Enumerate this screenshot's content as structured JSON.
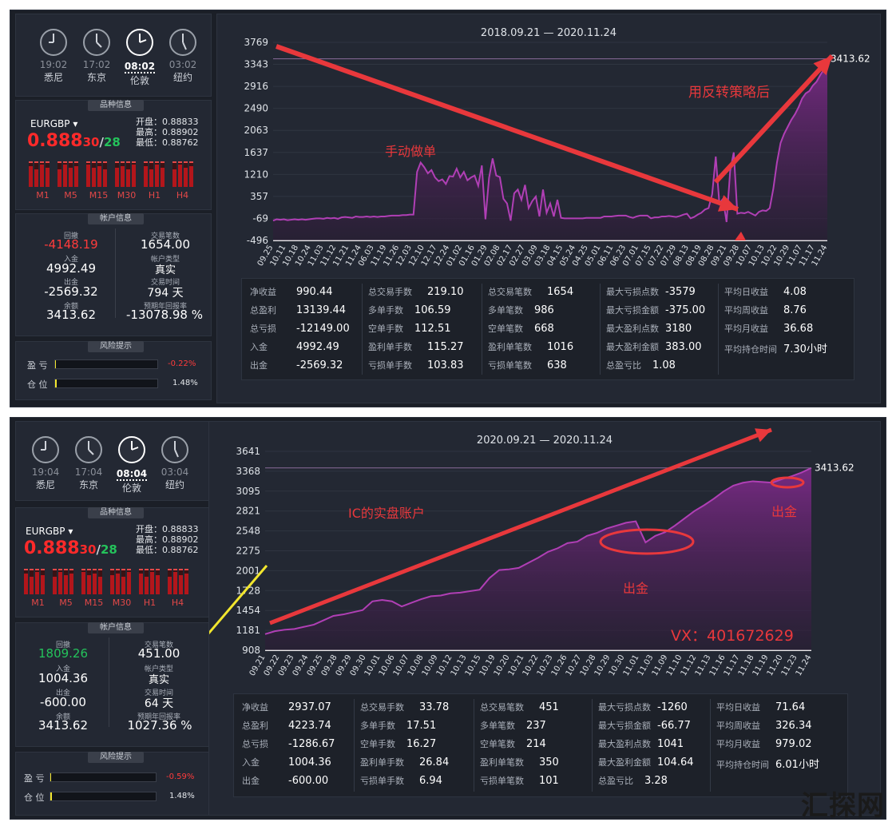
{
  "screens": [
    {
      "clocks": [
        {
          "time": "19:02",
          "city": "悉尼"
        },
        {
          "time": "17:02",
          "city": "东京"
        },
        {
          "time": "08:02",
          "city": "伦敦"
        },
        {
          "time": "03:02",
          "city": "纽约"
        }
      ],
      "symbol_panel": {
        "title": "品种信息",
        "symbol": "EURGBP",
        "price": "0.888",
        "bid": "30",
        "slash": "/",
        "ask": "28",
        "open": "开盘：0.88833",
        "high": "最高：0.88902",
        "low": "最低：0.88762"
      },
      "timeframes": [
        "M1",
        "M5",
        "M15",
        "M30",
        "H1",
        "H4"
      ],
      "account": {
        "title": "帐户信息",
        "drawdown_label": "回撤",
        "drawdown": "-4148.19",
        "trades_label": "交易笔数",
        "trades": "1654.00",
        "deposit_label": "入金",
        "deposit": "4992.49",
        "type_label": "帐户类型",
        "type": "真实",
        "withdraw_label": "出金",
        "withdraw": "-2569.32",
        "time_label": "交易时间",
        "time": "794 天",
        "balance_label": "余额",
        "balance": "3413.62",
        "annual_label": "预期年回报率",
        "annual": "-13078.98 %"
      },
      "risk": {
        "title": "风险提示",
        "pnl_label": "盈 亏",
        "pnl": "-0.22%",
        "pos_label": "仓 位",
        "pos": "1.48%"
      },
      "range": "2018.09.21 — 2020.11.24",
      "chart_data": {
        "type": "area",
        "ylabels": [
          "3769",
          "3343",
          "2916",
          "2490",
          "2063",
          "1637",
          "1210",
          "357",
          "-69",
          "-496"
        ],
        "xlabels": [
          "09.25",
          "10.11",
          "10.18",
          "10.24",
          "11.03",
          "11.12",
          "11.21",
          "11.24",
          "06.03",
          "11.19",
          "11.26",
          "12.03",
          "12.10",
          "12.17",
          "12.24",
          "01.02",
          "01.16",
          "01.29",
          "02.08",
          "02.17",
          "02.27",
          "03.09",
          "03.18",
          "04.15",
          "05.24",
          "04.25",
          "05.01",
          "06.11",
          "06.23",
          "07.01",
          "07.15",
          "07.22",
          "07.29",
          "08.13",
          "08.19",
          "08.28",
          "09.21",
          "09.28",
          "10.07",
          "10.13",
          "10.22",
          "10.29",
          "11.07",
          "11.17",
          "11.24"
        ],
        "ymin": -496,
        "ymax": 3769,
        "values": [
          -69,
          -40,
          -50,
          -40,
          -60,
          -50,
          -40,
          -50,
          -40,
          -50,
          -40,
          -30,
          -20,
          -20,
          -30,
          -10,
          -20,
          -10,
          -30,
          0,
          10,
          0,
          -10,
          20,
          10,
          10,
          20,
          10,
          20,
          10,
          20,
          20,
          30,
          40,
          40,
          40,
          50,
          50,
          60,
          60,
          980,
          1180,
          1080,
          950,
          1020,
          860,
          780,
          820,
          720,
          890,
          880,
          1050,
          860,
          980,
          800,
          860,
          900,
          680,
          1120,
          -40,
          850,
          1270,
          900,
          870,
          400,
          300,
          -70,
          520,
          600,
          380,
          700,
          200,
          350,
          450,
          20,
          600,
          100,
          300,
          20,
          380,
          -10,
          -20,
          -20,
          -20,
          -20,
          -20,
          -20,
          -10,
          -10,
          -10,
          -10,
          -10,
          20,
          20,
          20,
          30,
          40,
          40,
          40,
          10,
          -10,
          20,
          40,
          40,
          40,
          -20,
          0,
          0,
          20,
          20,
          30,
          20,
          10,
          30,
          60,
          80,
          -20,
          10,
          60,
          100,
          170,
          200,
          500,
          1310,
          300,
          400,
          -100,
          1000,
          1400,
          80,
          100,
          90,
          120,
          80,
          40,
          120,
          150,
          140,
          200,
          620,
          1180,
          1600,
          1800,
          1950,
          2100,
          2220,
          2370,
          2560,
          2670,
          2720,
          2840,
          2920,
          3060,
          3180,
          3413.62
        ],
        "last_label": "3413.62"
      },
      "annotations": [
        "手动做单",
        "用反转策略后"
      ],
      "stats": [
        [
          [
            "净收益",
            "990.44"
          ],
          [
            "总盈利",
            "13139.44"
          ],
          [
            "总亏损",
            "-12149.00"
          ],
          [
            "入金",
            "4992.49"
          ],
          [
            "出金",
            "-2569.32"
          ]
        ],
        [
          [
            "总交易手数",
            "219.10"
          ],
          [
            "多单手数",
            "106.59"
          ],
          [
            "空单手数",
            "112.51"
          ],
          [
            "盈利单手数",
            "115.27"
          ],
          [
            "亏损单手数",
            "103.83"
          ]
        ],
        [
          [
            "总交易笔数",
            "1654"
          ],
          [
            "多单笔数",
            "986"
          ],
          [
            "空单笔数",
            "668"
          ],
          [
            "盈利单笔数",
            "1016"
          ],
          [
            "亏损单笔数",
            "638"
          ]
        ],
        [
          [
            "最大亏损点数",
            "-3579"
          ],
          [
            "最大亏损金额",
            "-375.00"
          ],
          [
            "最大盈利点数",
            "3180"
          ],
          [
            "最大盈利金额",
            "383.00"
          ],
          [
            "总盈亏比",
            "1.08"
          ]
        ],
        [
          [
            "平均日收益",
            "4.08"
          ],
          [
            "平均周收益",
            "8.76"
          ],
          [
            "平均月收益",
            "36.68"
          ],
          [
            "平均持仓时间",
            "7.30小时"
          ]
        ]
      ]
    },
    {
      "clocks": [
        {
          "time": "19:04",
          "city": "悉尼"
        },
        {
          "time": "17:04",
          "city": "东京"
        },
        {
          "time": "08:04",
          "city": "伦敦"
        },
        {
          "time": "03:04",
          "city": "纽约"
        }
      ],
      "symbol_panel": {
        "title": "品种信息",
        "symbol": "EURGBP",
        "price": "0.888",
        "bid": "30",
        "slash": "/",
        "ask": "28",
        "open": "开盘：0.88833",
        "high": "最高：0.88902",
        "low": "最低：0.88762"
      },
      "timeframes": [
        "M1",
        "M5",
        "M15",
        "M30",
        "H1",
        "H4"
      ],
      "account": {
        "title": "帐户信息",
        "drawdown_label": "回撤",
        "drawdown": "1809.26",
        "trades_label": "交易笔数",
        "trades": "451.00",
        "deposit_label": "入金",
        "deposit": "1004.36",
        "type_label": "帐户类型",
        "type": "真实",
        "withdraw_label": "出金",
        "withdraw": "-600.00",
        "time_label": "交易时间",
        "time": "64 天",
        "balance_label": "余额",
        "balance": "3413.62",
        "annual_label": "预期年回报率",
        "annual": "1027.36 %"
      },
      "risk": {
        "title": "风险提示",
        "pnl_label": "盈 亏",
        "pnl": "-0.59%",
        "pos_label": "仓 位",
        "pos": "1.48%"
      },
      "range": "2020.09.21 — 2020.11.24",
      "chart_data": {
        "type": "area",
        "ylabels": [
          "3641",
          "3368",
          "3095",
          "2821",
          "2548",
          "2275",
          "2001",
          "1728",
          "1454",
          "1181",
          "908"
        ],
        "xlabels": [
          "09.21",
          "09.22",
          "09.23",
          "09.24",
          "09.25",
          "09.28",
          "09.29",
          "09.30",
          "10.01",
          "10.06",
          "10.07",
          "10.08",
          "10.09",
          "10.12",
          "10.13",
          "10.15",
          "10.19",
          "10.20",
          "10.21",
          "10.22",
          "10.23",
          "10.26",
          "10.27",
          "10.28",
          "10.29",
          "10.30",
          "11.01",
          "11.03",
          "11.09",
          "11.10",
          "11.12",
          "11.13",
          "11.16",
          "11.17",
          "11.18",
          "11.19",
          "11.20",
          "11.23",
          "11.24"
        ],
        "ymin": 908,
        "ymax": 3641,
        "values": [
          1130,
          1170,
          1190,
          1200,
          1230,
          1260,
          1320,
          1380,
          1400,
          1430,
          1460,
          1580,
          1600,
          1580,
          1510,
          1560,
          1610,
          1650,
          1660,
          1690,
          1700,
          1720,
          1740,
          1900,
          2010,
          2020,
          2040,
          2110,
          2180,
          2260,
          2310,
          2380,
          2400,
          2480,
          2520,
          2580,
          2620,
          2660,
          2680,
          2390,
          2480,
          2530,
          2620,
          2720,
          2820,
          2900,
          2990,
          3090,
          3170,
          3210,
          3230,
          3220,
          3210,
          3260,
          3300,
          3350,
          3413.62
        ],
        "last_label": "3413.62"
      },
      "annotations": [
        "IC的实盘账户",
        "出金",
        "出金",
        "VX：401672629"
      ],
      "stats": [
        [
          [
            "净收益",
            "2937.07"
          ],
          [
            "总盈利",
            "4223.74"
          ],
          [
            "总亏损",
            "-1286.67"
          ],
          [
            "入金",
            "1004.36"
          ],
          [
            "出金",
            "-600.00"
          ]
        ],
        [
          [
            "总交易手数",
            "33.78"
          ],
          [
            "多单手数",
            "17.51"
          ],
          [
            "空单手数",
            "16.27"
          ],
          [
            "盈利单手数",
            "26.84"
          ],
          [
            "亏损单手数",
            "6.94"
          ]
        ],
        [
          [
            "总交易笔数",
            "451"
          ],
          [
            "多单笔数",
            "237"
          ],
          [
            "空单笔数",
            "214"
          ],
          [
            "盈利单笔数",
            "350"
          ],
          [
            "亏损单笔数",
            "101"
          ]
        ],
        [
          [
            "最大亏损点数",
            "-1260"
          ],
          [
            "最大亏损金额",
            "-66.77"
          ],
          [
            "最大盈利点数",
            "1041"
          ],
          [
            "最大盈利金额",
            "104.64"
          ],
          [
            "总盈亏比",
            "3.28"
          ]
        ],
        [
          [
            "平均日收益",
            "71.64"
          ],
          [
            "平均周收益",
            "326.34"
          ],
          [
            "平均月收益",
            "979.02"
          ],
          [
            "平均持仓时间",
            "6.01小时"
          ]
        ]
      ]
    }
  ],
  "watermark": "汇探网",
  "colors": {
    "bg": "#1b1f27",
    "panel": "#232833",
    "up": "#ff2a2a",
    "down": "#24c25b",
    "line": "#b03fb5",
    "arrow": "#e8383c",
    "yellow": "#f2e62e"
  }
}
